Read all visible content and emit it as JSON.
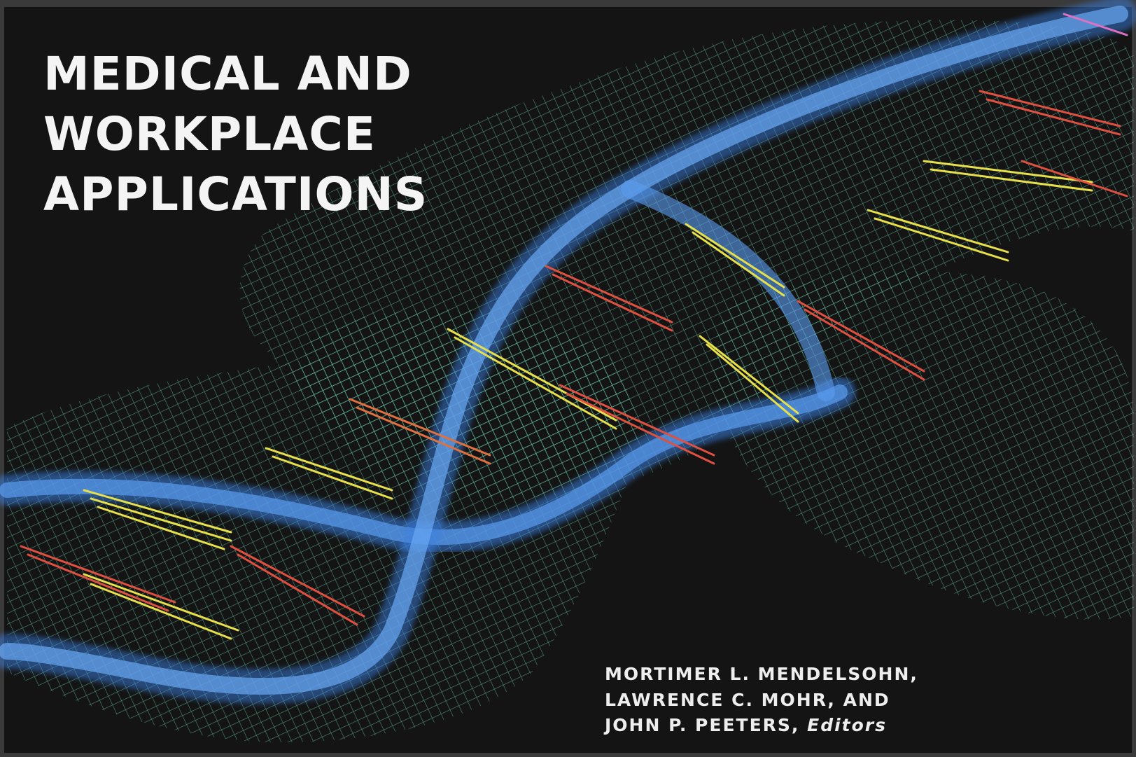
{
  "cover": {
    "title": [
      "MEDICAL AND",
      "WORKPLACE",
      "APPLICATIONS"
    ],
    "editors": [
      "MORTIMER L. MENDELSOHN,",
      "LAWRENCE C. MOHR, AND",
      "JOHN P. PEETERS,"
    ],
    "editors_role": "Editors"
  }
}
